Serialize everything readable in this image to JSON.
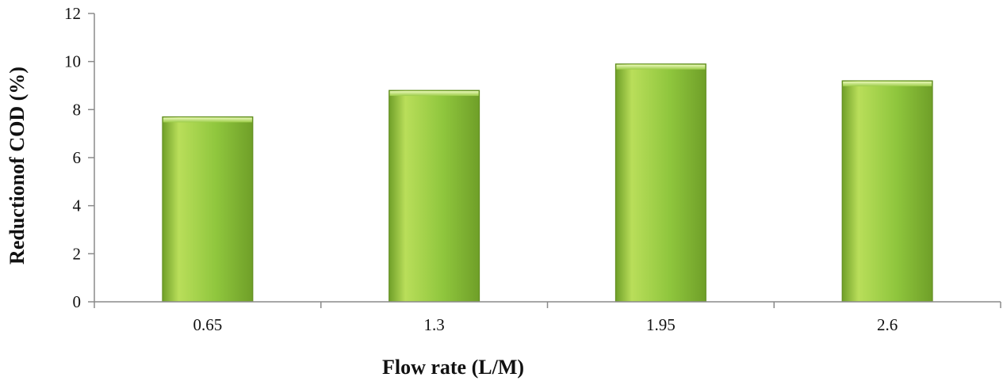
{
  "chart_data": {
    "type": "bar",
    "title": "",
    "xlabel": "Flow rate (L/M)",
    "ylabel": "Reductionof COD (%)",
    "categories": [
      "0.65",
      "1.3",
      "1.95",
      "2.6"
    ],
    "values": [
      7.7,
      8.8,
      9.9,
      9.2
    ],
    "ylim": [
      0,
      12
    ],
    "yticks": [
      "0",
      "2",
      "4",
      "6",
      "8",
      "10",
      "12"
    ],
    "grid": false,
    "legend": "none",
    "colors": {
      "bar_fill_light": "#b9de5a",
      "bar_fill_mid": "#8fc63d",
      "bar_fill_dark": "#6f9f28",
      "bar_edge": "#5f8a1e",
      "axis": "#8a8a8a"
    }
  }
}
